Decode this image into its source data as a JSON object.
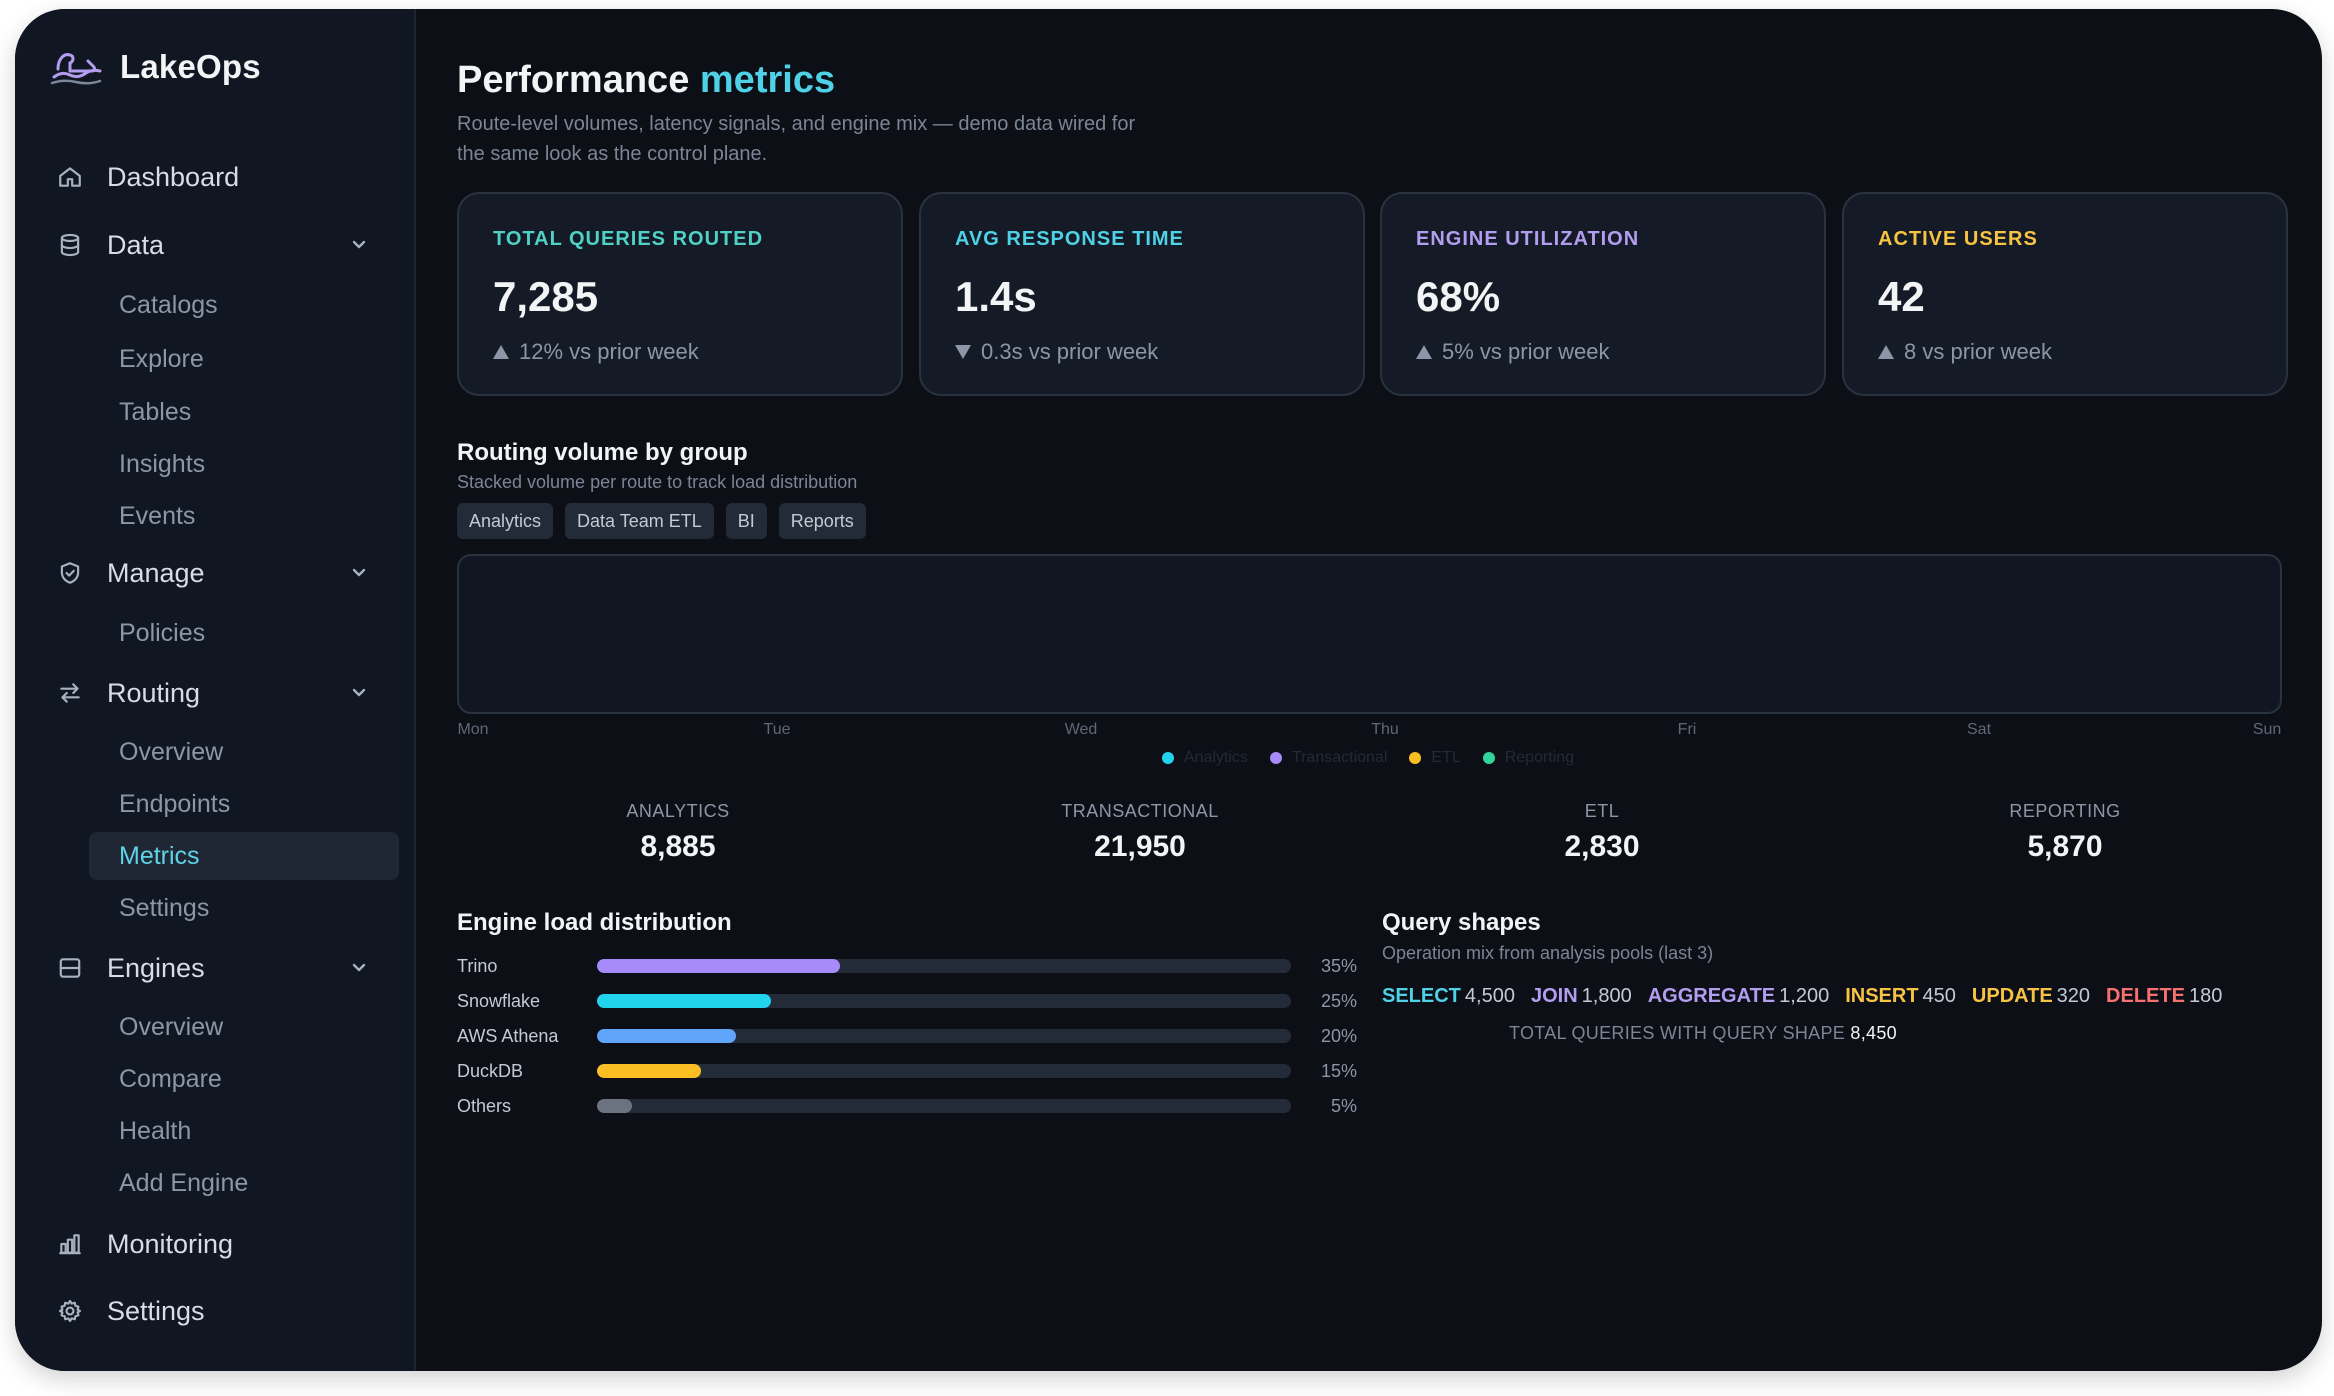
{
  "brand": {
    "name": "LakeOps"
  },
  "sidebar": {
    "dashboard": "Dashboard",
    "data": {
      "label": "Data",
      "items": [
        "Catalogs",
        "Explore",
        "Tables",
        "Insights",
        "Events"
      ]
    },
    "manage": {
      "label": "Manage",
      "items": [
        "Policies"
      ]
    },
    "routing": {
      "label": "Routing",
      "items": [
        "Overview",
        "Endpoints",
        "Metrics",
        "Settings"
      ],
      "active": "Metrics"
    },
    "engines": {
      "label": "Engines",
      "items": [
        "Overview",
        "Compare",
        "Health",
        "Add Engine"
      ]
    },
    "monitoring": "Monitoring",
    "settings": "Settings"
  },
  "page": {
    "title_main": "Performance",
    "title_accent": "metrics",
    "subtitle": "Route-level volumes, latency signals, and engine mix — demo data wired for the same look as the control plane."
  },
  "kpis": [
    {
      "label": "TOTAL QUERIES ROUTED",
      "value": "7,285",
      "delta": "12% vs prior week",
      "direction": "up",
      "color": "#4fd1c5"
    },
    {
      "label": "AVG RESPONSE TIME",
      "value": "1.4s",
      "delta": "0.3s vs prior week",
      "direction": "down",
      "color": "#4fd1e6"
    },
    {
      "label": "ENGINE UTILIZATION",
      "value": "68%",
      "delta": "5% vs prior week",
      "direction": "up",
      "color": "#b39df0"
    },
    {
      "label": "ACTIVE USERS",
      "value": "42",
      "delta": "8 vs prior week",
      "direction": "up",
      "color": "#f6c343"
    }
  ],
  "routing": {
    "title": "Routing volume by group",
    "subtitle": "Stacked volume per route to track load distribution",
    "chips": [
      "Analytics",
      "Data Team ETL",
      "BI",
      "Reports"
    ],
    "days": [
      "Mon",
      "Tue",
      "Wed",
      "Thu",
      "Fri",
      "Sat",
      "Sun"
    ],
    "legend": [
      {
        "name": "Analytics",
        "color": "#22d3ee"
      },
      {
        "name": "Transactional",
        "color": "#a78bfa"
      },
      {
        "name": "ETL",
        "color": "#fbbf24"
      },
      {
        "name": "Reporting",
        "color": "#34d399"
      }
    ],
    "totals": [
      {
        "label": "ANALYTICS",
        "value": "8,885"
      },
      {
        "label": "TRANSACTIONAL",
        "value": "21,950"
      },
      {
        "label": "ETL",
        "value": "2,830"
      },
      {
        "label": "REPORTING",
        "value": "5,870"
      }
    ]
  },
  "engine_load": {
    "title": "Engine load distribution",
    "rows": [
      {
        "name": "Trino",
        "pct": 35,
        "label": "35%",
        "color": "#a78bfa"
      },
      {
        "name": "Snowflake",
        "pct": 25,
        "label": "25%",
        "color": "#22d3ee"
      },
      {
        "name": "AWS Athena",
        "pct": 20,
        "label": "20%",
        "color": "#60a5fa"
      },
      {
        "name": "DuckDB",
        "pct": 15,
        "label": "15%",
        "color": "#fbbf24"
      },
      {
        "name": "Others",
        "pct": 5,
        "label": "5%",
        "color": "#6b7280"
      }
    ]
  },
  "query_shapes": {
    "title": "Query shapes",
    "subtitle": "Operation mix from analysis pools (last 3)",
    "items": [
      {
        "name": "SELECT",
        "value": "4,500",
        "color": "#4fd1e6"
      },
      {
        "name": "JOIN",
        "value": "1,800",
        "color": "#b39df0"
      },
      {
        "name": "AGGREGATE",
        "value": "1,200",
        "color": "#b39df0"
      },
      {
        "name": "INSERT",
        "value": "450",
        "color": "#f6c343"
      },
      {
        "name": "UPDATE",
        "value": "320",
        "color": "#f6c343"
      },
      {
        "name": "DELETE",
        "value": "180",
        "color": "#f87171"
      }
    ],
    "total_label": "TOTAL QUERIES WITH QUERY SHAPE",
    "total_value": "8,450"
  }
}
